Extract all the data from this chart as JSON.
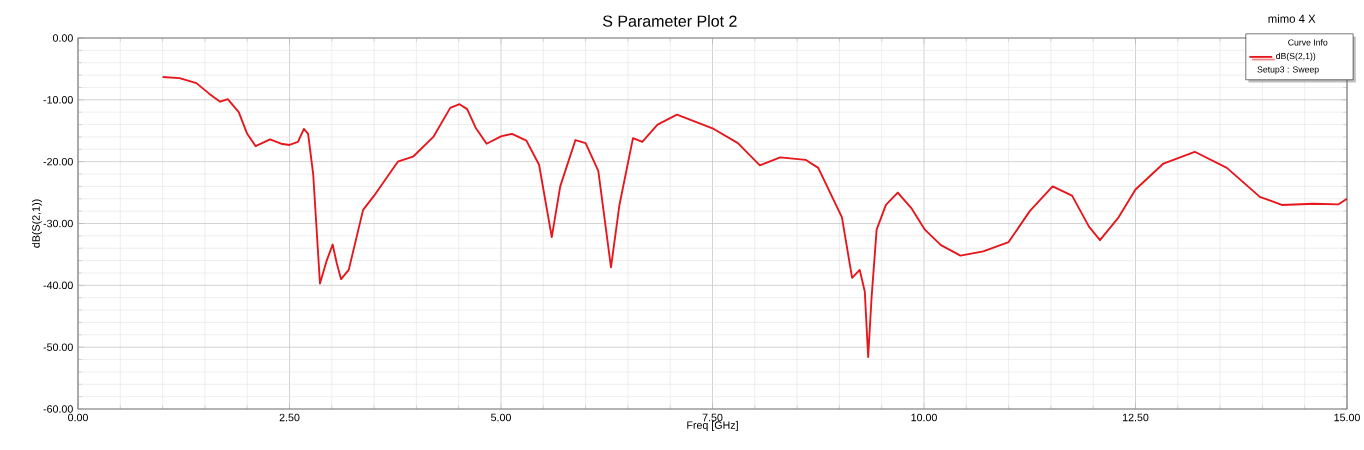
{
  "chart_data": {
    "type": "line",
    "title": "S Parameter Plot 2",
    "xlabel": "Freq [GHz]",
    "ylabel": "dB(S(2,1))",
    "legend_title": "Curve Info",
    "annotations": [
      "Setup3 : Sweep",
      "mimo 4 X"
    ],
    "xlim": [
      0,
      15
    ],
    "ylim": [
      -60,
      0
    ],
    "xticks": [
      {
        "value": 0,
        "label": "0.00"
      },
      {
        "value": 2.5,
        "label": "2.50"
      },
      {
        "value": 5,
        "label": "5.00"
      },
      {
        "value": 7.5,
        "label": "7.50"
      },
      {
        "value": 10,
        "label": "10.00"
      },
      {
        "value": 12.5,
        "label": "12.50"
      },
      {
        "value": 15,
        "label": "15.00"
      }
    ],
    "yticks": [
      {
        "value": -60,
        "label": "-60.00"
      },
      {
        "value": -50,
        "label": "-50.00"
      },
      {
        "value": -40,
        "label": "-40.00"
      },
      {
        "value": -30,
        "label": "-30.00"
      },
      {
        "value": -20,
        "label": "-20.00"
      },
      {
        "value": -10,
        "label": "-10.00"
      },
      {
        "value": 0,
        "label": "0.00"
      }
    ],
    "grid": true,
    "legend": "top right",
    "marker": "none",
    "line_style": "solid",
    "series": [
      {
        "name": "dB(S(2,1))",
        "color": "#e8151b",
        "x": [
          1.0,
          1.2,
          1.4,
          1.55,
          1.68,
          1.77,
          1.9,
          2.0,
          2.1,
          2.27,
          2.4,
          2.5,
          2.6,
          2.67,
          2.72,
          2.78,
          2.86,
          2.94,
          3.01,
          3.06,
          3.11,
          3.2,
          3.37,
          3.5,
          3.78,
          3.96,
          4.2,
          4.4,
          4.51,
          4.6,
          4.7,
          4.83,
          5.0,
          5.13,
          5.3,
          5.45,
          5.6,
          5.7,
          5.88,
          6.0,
          6.15,
          6.3,
          6.4,
          6.56,
          6.67,
          6.85,
          7.08,
          7.5,
          7.8,
          8.06,
          8.3,
          8.6,
          8.75,
          8.89,
          9.03,
          9.15,
          9.24,
          9.3,
          9.34,
          9.38,
          9.44,
          9.55,
          9.69,
          9.85,
          10.01,
          10.2,
          10.43,
          10.7,
          11.0,
          11.25,
          11.52,
          11.75,
          11.95,
          12.08,
          12.3,
          12.5,
          12.83,
          13.2,
          13.58,
          13.97,
          14.23,
          14.6,
          14.9,
          15.0
        ],
        "values": [
          -6.3,
          -6.5,
          -7.3,
          -9.0,
          -10.3,
          -9.9,
          -12.0,
          -15.5,
          -17.5,
          -16.4,
          -17.1,
          -17.3,
          -16.8,
          -14.7,
          -15.5,
          -22.0,
          -39.7,
          -36.0,
          -33.4,
          -36.5,
          -39.0,
          -37.5,
          -27.8,
          -25.5,
          -20.0,
          -19.2,
          -16.0,
          -11.3,
          -10.7,
          -11.5,
          -14.5,
          -17.1,
          -15.9,
          -15.5,
          -16.6,
          -20.5,
          -32.2,
          -24.0,
          -16.5,
          -17.0,
          -21.5,
          -37.1,
          -27.0,
          -16.2,
          -16.8,
          -14.0,
          -12.4,
          -14.6,
          -17.0,
          -20.6,
          -19.3,
          -19.7,
          -21.0,
          -25.0,
          -29.0,
          -38.8,
          -37.5,
          -41.0,
          -51.6,
          -42.0,
          -31.0,
          -27.0,
          -25.0,
          -27.5,
          -31.0,
          -33.5,
          -35.2,
          -34.5,
          -33.0,
          -28.0,
          -24.0,
          -25.5,
          -30.5,
          -32.7,
          -29.0,
          -24.5,
          -20.3,
          -18.4,
          -21.0,
          -25.7,
          -27.0,
          -26.8,
          -26.9,
          -26.0
        ]
      }
    ]
  }
}
